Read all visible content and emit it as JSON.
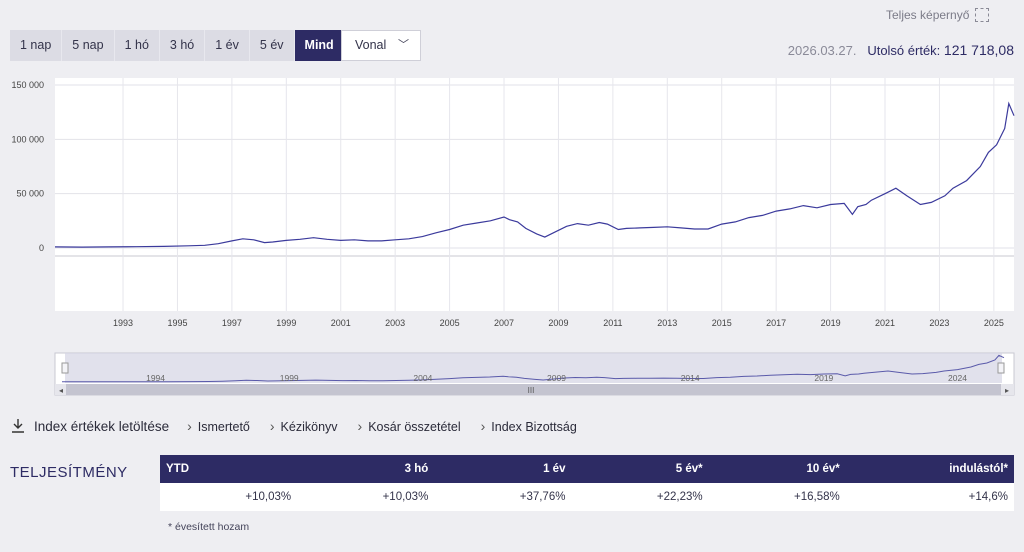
{
  "header": {
    "fullscreen_label": "Teljes képernyő",
    "range_tabs": [
      "1 nap",
      "5 nap",
      "1 hó",
      "3 hó",
      "1 év",
      "5 év",
      "Mind"
    ],
    "active_tab": "Mind",
    "chart_type": "Vonal",
    "date": "2026.03.27.",
    "last_value_label": "Utolsó érték:",
    "last_value": "121 718,08"
  },
  "links": {
    "download": "Index értékek letöltése",
    "items": [
      "Ismertető",
      "Kézikönyv",
      "Kosár összetétel",
      "Index Bizottság"
    ]
  },
  "performance": {
    "title": "TELJESÍTMÉNY",
    "headers": [
      "YTD",
      "3 hó",
      "1 év",
      "5 év*",
      "10 év*",
      "indulástól*"
    ],
    "values": [
      "+10,03%",
      "+10,03%",
      "+37,76%",
      "+22,23%",
      "+16,58%",
      "+14,6%"
    ],
    "footnote": "* évesített hozam"
  },
  "colors": {
    "accent": "#2d2b64",
    "line": "#3b3a9c"
  },
  "chart_data": {
    "type": "line",
    "y_ticks": [
      "150 000",
      "100 000",
      "50 000",
      "0"
    ],
    "x_ticks": [
      "1993",
      "1995",
      "1997",
      "1999",
      "2001",
      "2003",
      "2005",
      "2007",
      "2009",
      "2011",
      "2013",
      "2015",
      "2017",
      "2019",
      "2021",
      "2023",
      "2025"
    ],
    "navigator_ticks": [
      "1994",
      "1999",
      "2004",
      "2009",
      "2014",
      "2019",
      "2024"
    ],
    "ylim": [
      0,
      150000
    ],
    "x": [
      1991.0,
      1992.0,
      1993.0,
      1994.0,
      1995.0,
      1995.9,
      1996.5,
      1997.0,
      1997.5,
      1997.9,
      1998.3,
      1998.7,
      1999.0,
      1999.5,
      2000.0,
      2000.5,
      2001.0,
      2001.5,
      2002.0,
      2002.5,
      2003.0,
      2003.5,
      2004.0,
      2004.5,
      2005.0,
      2005.5,
      2006.0,
      2006.5,
      2007.0,
      2007.5,
      2007.7,
      2008.0,
      2008.3,
      2008.7,
      2009.0,
      2009.4,
      2009.8,
      2010.2,
      2010.6,
      2011.0,
      2011.3,
      2011.7,
      2012.0,
      2012.5,
      2013.0,
      2013.5,
      2014.0,
      2014.5,
      2015.0,
      2015.5,
      2016.0,
      2016.5,
      2017.0,
      2017.5,
      2018.0,
      2018.5,
      2019.0,
      2019.5,
      2020.0,
      2020.3,
      2020.5,
      2020.8,
      2021.0,
      2021.5,
      2021.9,
      2022.3,
      2022.8,
      2023.2,
      2023.7,
      2024.0,
      2024.5,
      2025.0,
      2025.3,
      2025.6,
      2025.9,
      2026.05,
      2026.24
    ],
    "y": [
      1000,
      800,
      1000,
      1200,
      1500,
      2000,
      2500,
      4000,
      6500,
      8500,
      7500,
      5000,
      5500,
      7000,
      8000,
      9500,
      8000,
      7000,
      7500,
      6500,
      6500,
      7500,
      8500,
      10500,
      14000,
      17000,
      21000,
      23000,
      25000,
      28500,
      26000,
      24000,
      18000,
      13000,
      10000,
      15000,
      20000,
      22500,
      21000,
      23500,
      22000,
      17000,
      18000,
      18500,
      19000,
      19500,
      18500,
      17500,
      17500,
      22000,
      24000,
      28000,
      30000,
      34000,
      36000,
      39000,
      37000,
      40000,
      41000,
      31000,
      38000,
      40000,
      44000,
      50000,
      55000,
      48000,
      40000,
      42000,
      48000,
      55000,
      62000,
      75000,
      88000,
      95000,
      110000,
      133000,
      121718
    ]
  }
}
